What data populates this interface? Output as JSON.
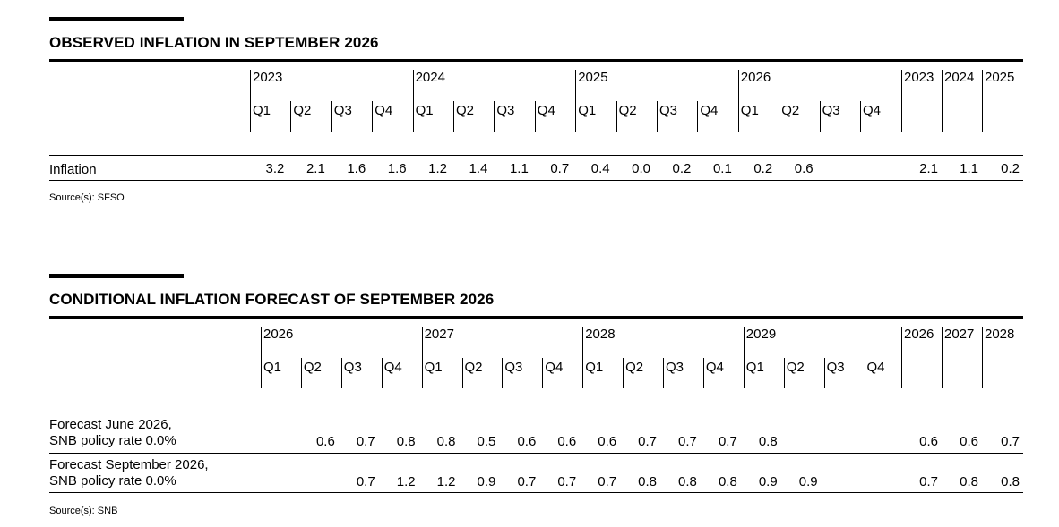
{
  "table1": {
    "title": "OBSERVED INFLATION IN SEPTEMBER 2026",
    "years": [
      "2023",
      "2024",
      "2025",
      "2026"
    ],
    "quarters": [
      "Q1",
      "Q2",
      "Q3",
      "Q4"
    ],
    "annual_years": [
      "2023",
      "2024",
      "2025"
    ],
    "rows": [
      {
        "label": "Inflation",
        "quarterly": [
          "3.2",
          "2.1",
          "1.6",
          "1.6",
          "1.2",
          "1.4",
          "1.1",
          "0.7",
          "0.4",
          "0.0",
          "0.2",
          "0.1",
          "0.2",
          "0.6",
          "",
          ""
        ],
        "annual": [
          "2.1",
          "1.1",
          "0.2"
        ]
      }
    ],
    "source": "Source(s): SFSO"
  },
  "table2": {
    "title": "CONDITIONAL INFLATION FORECAST OF SEPTEMBER 2026",
    "years": [
      "2026",
      "2027",
      "2028",
      "2029"
    ],
    "quarters": [
      "Q1",
      "Q2",
      "Q3",
      "Q4"
    ],
    "annual_years": [
      "2026",
      "2027",
      "2028"
    ],
    "rows": [
      {
        "label": "Forecast June 2026,\nSNB policy rate 0.0%",
        "quarterly": [
          "",
          "0.6",
          "0.7",
          "0.8",
          "0.8",
          "0.5",
          "0.6",
          "0.6",
          "0.6",
          "0.7",
          "0.7",
          "0.7",
          "0.8",
          "",
          "",
          ""
        ],
        "annual": [
          "0.6",
          "0.6",
          "0.7"
        ]
      },
      {
        "label": "Forecast September 2026,\nSNB policy rate 0.0%",
        "quarterly": [
          "",
          "",
          "0.7",
          "1.2",
          "1.2",
          "0.9",
          "0.7",
          "0.7",
          "0.7",
          "0.8",
          "0.8",
          "0.8",
          "0.9",
          "0.9",
          "",
          ""
        ],
        "annual": [
          "0.7",
          "0.8",
          "0.8"
        ]
      }
    ],
    "source": "Source(s): SNB"
  }
}
